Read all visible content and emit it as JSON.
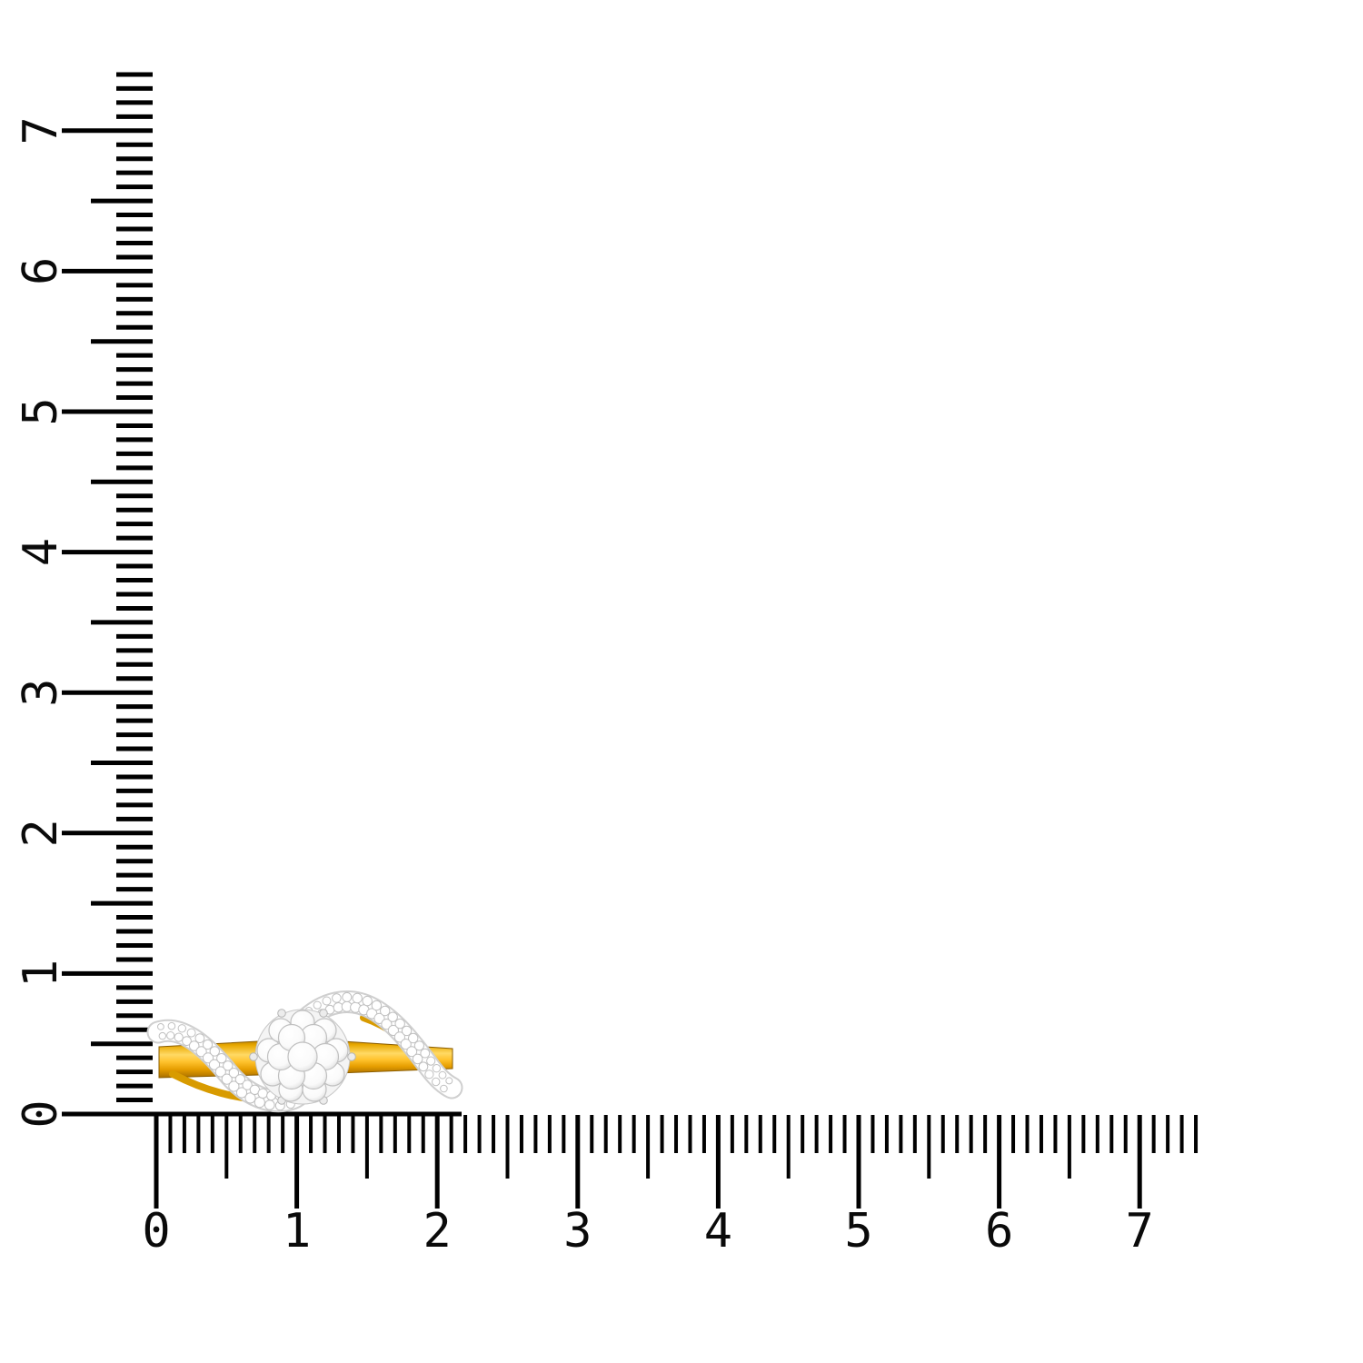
{
  "scene": {
    "background": "#ffffff",
    "description": "Yellow-gold diamond cluster bypass ring photographed in profile beside an L-shaped measuring scale (vertical and horizontal rulers)"
  },
  "vertical_ruler": {
    "labels": [
      "0",
      "1",
      "2",
      "3",
      "4",
      "5",
      "6",
      "7"
    ],
    "max_value": 7.4,
    "minor_step": 0.1,
    "tick_color": "#000000",
    "label_rotation_deg": -90
  },
  "horizontal_ruler": {
    "labels": [
      "0",
      "1",
      "2",
      "3",
      "4",
      "5",
      "6",
      "7"
    ],
    "max_value": 7.4,
    "minor_step": 0.1,
    "tick_color": "#000000"
  },
  "ring": {
    "style": "diamond cluster bypass ring",
    "band_color_main": "#F3B20C",
    "band_color_highlight": "#FFD964",
    "band_color_shadow": "#A86F00",
    "band_edge_color": "#8A5C00",
    "stone_color": "#FFFFFF",
    "stone_outline": "#C0C0C0",
    "setting_color": "#F2F2F2"
  }
}
